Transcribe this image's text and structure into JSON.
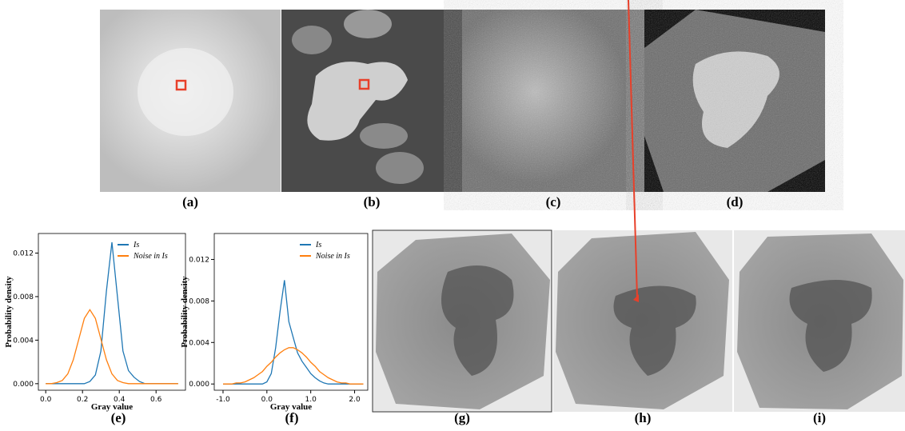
{
  "captions": [
    "(a)",
    "(b)",
    "(c)",
    "(d)",
    "(e)",
    "(f)",
    "(g)",
    "(h)",
    "(i)"
  ],
  "chart_data": [
    {
      "type": "line",
      "xlabel": "Gray value",
      "ylabel": "Probability density",
      "x": [
        0,
        0.03,
        0.06,
        0.09,
        0.12,
        0.15,
        0.18,
        0.21,
        0.24,
        0.27,
        0.3,
        0.33,
        0.36,
        0.39,
        0.42,
        0.45,
        0.48,
        0.51,
        0.54,
        0.57,
        0.6,
        0.63,
        0.66,
        0.69,
        0.72
      ],
      "series": [
        {
          "name": "Is",
          "color": "#1f77b4",
          "values": [
            0,
            0,
            0,
            0,
            0,
            0,
            0,
            0,
            0.0002,
            0.0008,
            0.003,
            0.0085,
            0.013,
            0.008,
            0.003,
            0.0012,
            0.0006,
            0.0002,
            0,
            0,
            0,
            0,
            0,
            0,
            0
          ]
        },
        {
          "name": "Noise in Is",
          "color": "#ff7f0e",
          "values": [
            0,
            0,
            0.0001,
            0.0003,
            0.0009,
            0.0022,
            0.0041,
            0.006,
            0.0068,
            0.006,
            0.0041,
            0.0022,
            0.0009,
            0.0003,
            0.0001,
            0,
            0,
            0,
            0,
            0,
            0,
            0,
            0,
            0,
            0
          ]
        }
      ],
      "xlim": [
        -0.04,
        0.76
      ],
      "ylim": [
        -0.0006,
        0.0138
      ],
      "xticks": [
        {
          "value": 0,
          "label": "0.0"
        },
        0.2,
        0.4,
        0.6
      ],
      "yticks": [
        {
          "value": 0,
          "label": "0.000"
        },
        {
          "value": 0.004,
          "label": "0.004"
        },
        {
          "value": 0.008,
          "label": "0.008"
        },
        {
          "value": 0.012,
          "label": "0.012"
        }
      ],
      "legend": "upper right"
    },
    {
      "type": "line",
      "xlabel": "Gray value",
      "ylabel": "Probability density",
      "x": [
        -1,
        -0.9,
        -0.8,
        -0.7,
        -0.6,
        -0.5,
        -0.4,
        -0.3,
        -0.2,
        -0.1,
        0,
        0.1,
        0.2,
        0.3,
        0.4,
        0.5,
        0.6,
        0.7,
        0.8,
        0.9,
        1,
        1.1,
        1.2,
        1.3,
        1.4,
        1.5,
        1.6,
        1.7,
        1.8,
        1.9,
        2,
        2.1,
        2.2
      ],
      "series": [
        {
          "name": "Is",
          "color": "#1f77b4",
          "values": [
            0,
            0,
            0,
            0,
            0,
            0,
            0,
            0,
            0,
            0,
            0.0002,
            0.001,
            0.0035,
            0.007,
            0.01,
            0.006,
            0.0045,
            0.003,
            0.0022,
            0.0016,
            0.001,
            0.0006,
            0.0003,
            0.0001,
            0,
            0,
            0,
            0,
            0,
            0,
            0,
            0,
            0
          ]
        },
        {
          "name": "Noise in Is",
          "color": "#ff7f0e",
          "values": [
            0,
            0,
            0,
            0.0001,
            0.0001,
            0.0002,
            0.0004,
            0.0006,
            0.0009,
            0.0012,
            0.0017,
            0.0021,
            0.0026,
            0.003,
            0.0033,
            0.0035,
            0.0035,
            0.0033,
            0.003,
            0.0026,
            0.0021,
            0.0017,
            0.0012,
            0.0009,
            0.0006,
            0.0004,
            0.0002,
            0.0001,
            0.0001,
            0,
            0,
            0,
            0
          ]
        }
      ],
      "xlim": [
        -1.2,
        2.3
      ],
      "ylim": [
        -0.0006,
        0.0145
      ],
      "xticks": [
        {
          "value": -1,
          "label": "-1.0"
        },
        {
          "value": 0,
          "label": "0.0"
        },
        {
          "value": 1,
          "label": "1.0"
        },
        {
          "value": 2,
          "label": "2.0"
        }
      ],
      "yticks": [
        {
          "value": 0,
          "label": "0.000"
        },
        {
          "value": 0.004,
          "label": "0.004"
        },
        {
          "value": 0.008,
          "label": "0.008"
        },
        {
          "value": 0.012,
          "label": "0.012"
        }
      ],
      "legend": "upper right"
    }
  ]
}
